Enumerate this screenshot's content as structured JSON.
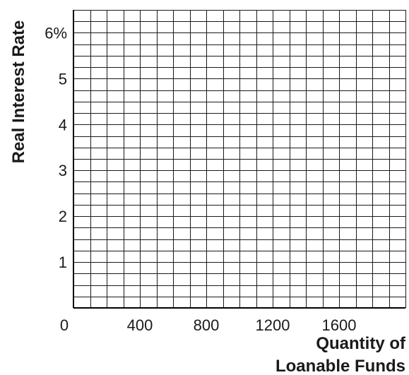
{
  "chart_data": {
    "type": "line",
    "title": "",
    "xlabel_lines": [
      "Quantity of",
      "Loanable Funds"
    ],
    "ylabel": "Real Interest Rate",
    "xlim": [
      0,
      2000
    ],
    "ylim": [
      0,
      6.5
    ],
    "grid": true,
    "x_grid_step": 100,
    "y_grid_step": 0.25,
    "x_ticks": [
      {
        "value": 0,
        "label": "0"
      },
      {
        "value": 400,
        "label": "400"
      },
      {
        "value": 800,
        "label": "800"
      },
      {
        "value": 1200,
        "label": "1200"
      },
      {
        "value": 1600,
        "label": "1600"
      }
    ],
    "y_ticks": [
      {
        "value": 1,
        "label": "1"
      },
      {
        "value": 2,
        "label": "2"
      },
      {
        "value": 3,
        "label": "3"
      },
      {
        "value": 4,
        "label": "4"
      },
      {
        "value": 5,
        "label": "5"
      },
      {
        "value": 6,
        "label": "6%"
      }
    ],
    "series": []
  }
}
